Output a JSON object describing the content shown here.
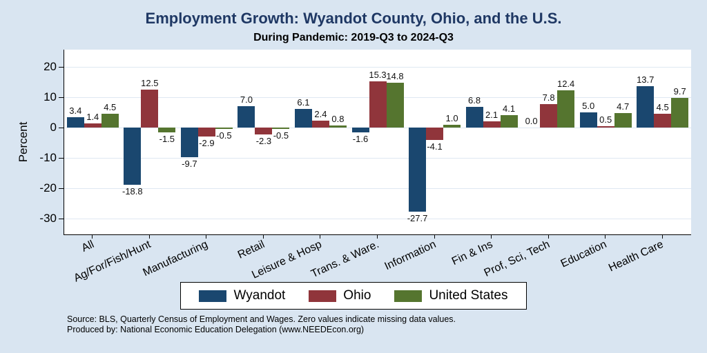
{
  "page": {
    "background": "#d9e5f1",
    "title_color": "#1f3864",
    "source_lines": {
      "line1": "Source: BLS, Quarterly Census of Employment and Wages. Zero values indicate missing data values.",
      "line2": "Produced by: National Economic Education Delegation (www.NEEDEcon.org)"
    }
  },
  "chart_data": {
    "type": "bar",
    "title": "Employment Growth: Wyandot County, Ohio, and the U.S.",
    "subtitle": "During Pandemic: 2019-Q3 to 2024-Q3",
    "xlabel": "",
    "ylabel": "Percent",
    "ylim": [
      -35.2,
      25.7
    ],
    "yticks": [
      20,
      10,
      0,
      -10,
      -20,
      -30
    ],
    "grid": true,
    "legend_position": "bottom",
    "categories": [
      "All",
      "Ag/For/Fish/Hunt",
      "Manufacturing",
      "Retail",
      "Leisure & Hosp",
      "Trans. & Ware.",
      "Information",
      "Fin & Ins",
      "Prof, Sci, Tech",
      "Education",
      "Health Care"
    ],
    "series": [
      {
        "name": "Wyandot",
        "color": "#1a476f",
        "values": [
          3.4,
          -18.8,
          -9.7,
          7.0,
          6.1,
          -1.6,
          -27.7,
          6.8,
          0.0,
          5.0,
          13.7
        ]
      },
      {
        "name": "Ohio",
        "color": "#90353b",
        "values": [
          1.4,
          12.5,
          -2.9,
          -2.3,
          2.4,
          15.3,
          -4.1,
          2.1,
          7.8,
          0.5,
          4.5
        ]
      },
      {
        "name": "United States",
        "color": "#55752f",
        "values": [
          4.5,
          -1.5,
          -0.5,
          -0.5,
          0.8,
          14.8,
          1.0,
          4.1,
          12.4,
          4.7,
          9.7
        ]
      }
    ],
    "value_labels": true
  }
}
